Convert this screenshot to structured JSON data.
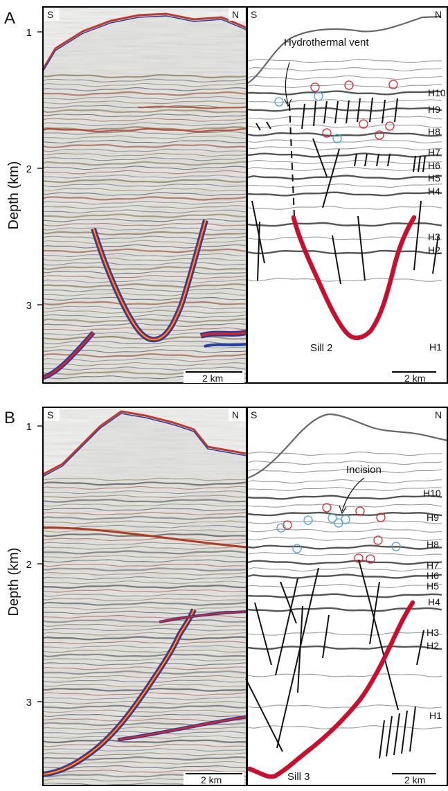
{
  "panels": [
    {
      "letter": "A",
      "y_axis_title": "Depth (km)",
      "y_ticks": [
        "1",
        "2",
        "3"
      ],
      "seismic": {
        "left_label": "S",
        "right_label": "N",
        "scale_bar": "2 km"
      },
      "interpretation": {
        "left_label": "S",
        "right_label": "N",
        "scale_bar": "2 km",
        "annotation": "Hydrothermal vent",
        "sill_label": "Sill 2",
        "horizons": [
          "H10",
          "H9",
          "H8",
          "H7",
          "H6",
          "H5",
          "H4",
          "H3",
          "H2",
          "H1"
        ]
      }
    },
    {
      "letter": "B",
      "y_axis_title": "Depth (km)",
      "y_ticks": [
        "1",
        "2",
        "3"
      ],
      "seismic": {
        "left_label": "S",
        "right_label": "N",
        "scale_bar": "2 km"
      },
      "interpretation": {
        "left_label": "S",
        "right_label": "N",
        "scale_bar": "2 km",
        "annotation": "Incision",
        "sill_label": "Sill 3",
        "horizons": [
          "H10",
          "H9",
          "H8",
          "H7",
          "H6",
          "H5",
          "H4",
          "H3",
          "H2",
          "H1"
        ]
      }
    }
  ],
  "colors": {
    "sill": "#c8102e",
    "circle_red": "#d9232d",
    "circle_blue": "#4aa3d8",
    "seismic_bg": "#e4e4e1"
  }
}
